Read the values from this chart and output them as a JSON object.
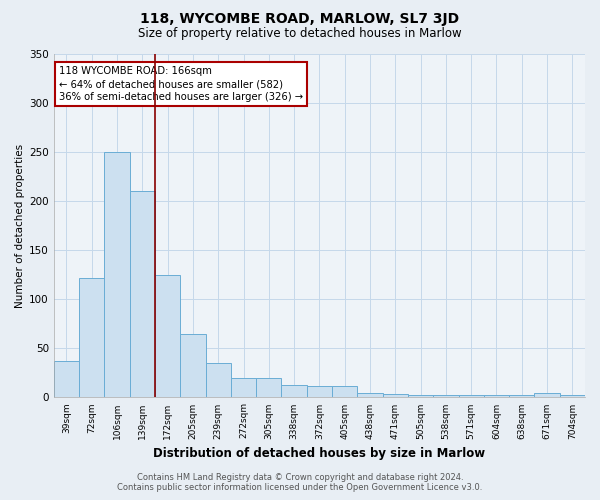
{
  "title": "118, WYCOMBE ROAD, MARLOW, SL7 3JD",
  "subtitle": "Size of property relative to detached houses in Marlow",
  "xlabel": "Distribution of detached houses by size in Marlow",
  "ylabel": "Number of detached properties",
  "categories": [
    "39sqm",
    "72sqm",
    "106sqm",
    "139sqm",
    "172sqm",
    "205sqm",
    "239sqm",
    "272sqm",
    "305sqm",
    "338sqm",
    "372sqm",
    "405sqm",
    "438sqm",
    "471sqm",
    "505sqm",
    "538sqm",
    "571sqm",
    "604sqm",
    "638sqm",
    "671sqm",
    "704sqm"
  ],
  "values": [
    37,
    122,
    250,
    210,
    125,
    65,
    35,
    20,
    20,
    13,
    12,
    12,
    5,
    3,
    2,
    2,
    2,
    2,
    2,
    5,
    2
  ],
  "bar_color": "#cce0f0",
  "bar_edge_color": "#6aadd5",
  "ylim": [
    0,
    350
  ],
  "yticks": [
    0,
    50,
    100,
    150,
    200,
    250,
    300,
    350
  ],
  "annotation_text": "118 WYCOMBE ROAD: 166sqm\n← 64% of detached houses are smaller (582)\n36% of semi-detached houses are larger (326) →",
  "annotation_box_color": "#ffffff",
  "annotation_box_edge": "#aa0000",
  "footer_line1": "Contains HM Land Registry data © Crown copyright and database right 2024.",
  "footer_line2": "Contains public sector information licensed under the Open Government Licence v3.0.",
  "background_color": "#e8eef4",
  "plot_background": "#eef3f8",
  "grid_color": "#c5d8ea"
}
